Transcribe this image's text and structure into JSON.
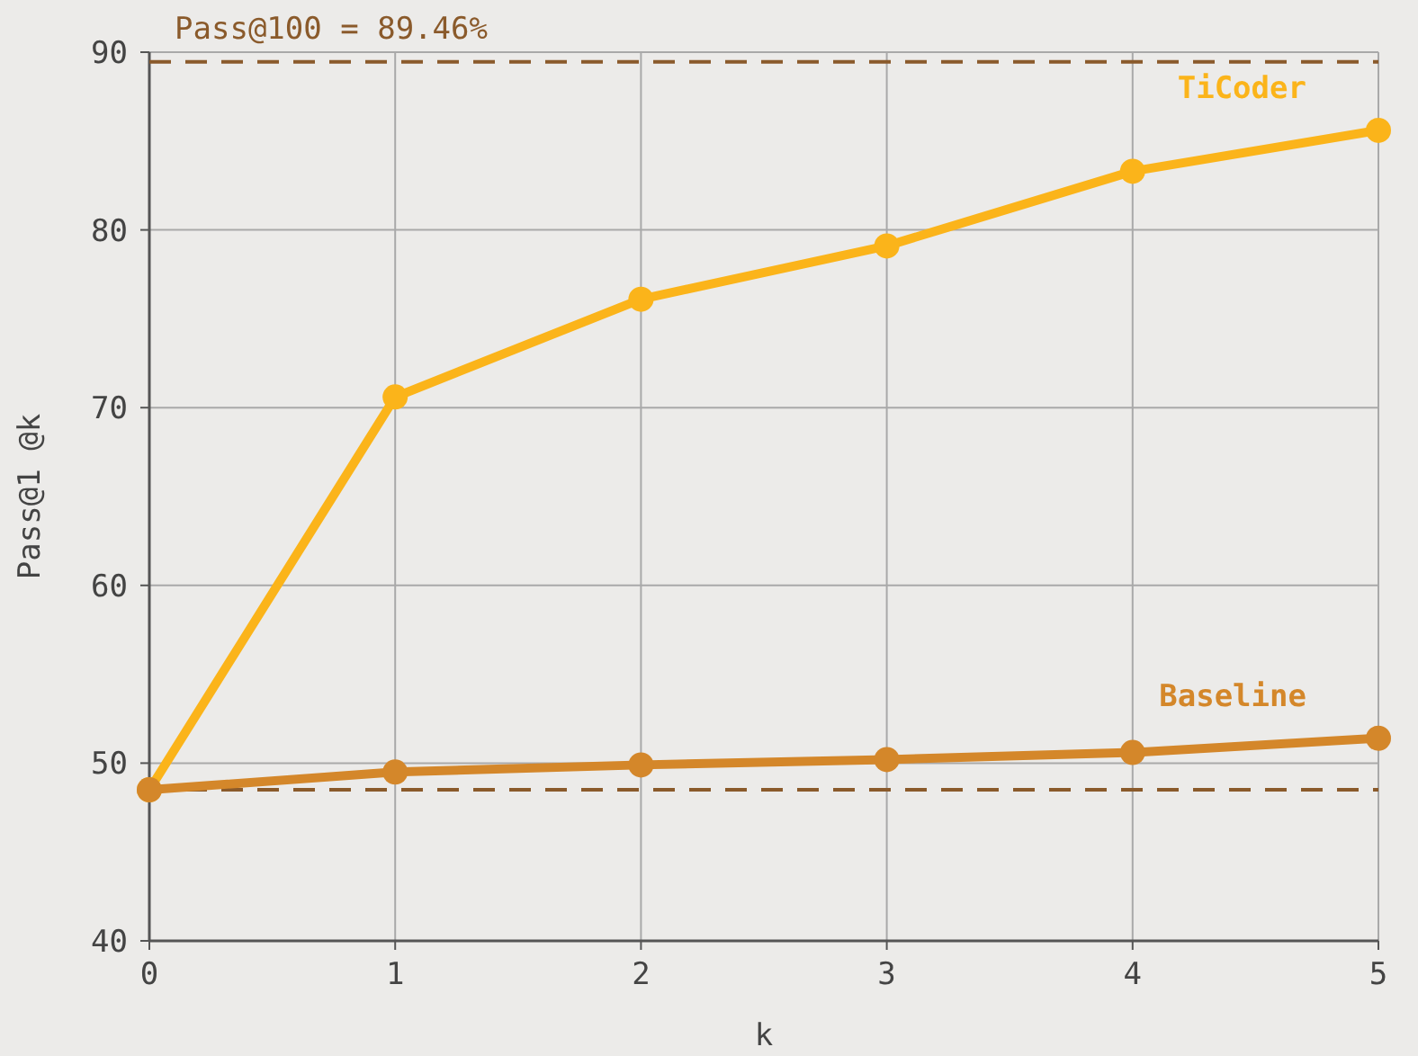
{
  "chart_data": {
    "type": "line",
    "xlabel": "k",
    "ylabel": "Pass@1 @k",
    "x": [
      0,
      1,
      2,
      3,
      4,
      5
    ],
    "series": [
      {
        "name": "TiCoder",
        "color": "#fbb41a",
        "values": [
          48.5,
          70.6,
          76.1,
          79.1,
          83.3,
          85.6
        ]
      },
      {
        "name": "Baseline",
        "color": "#d4872a",
        "values": [
          48.5,
          49.5,
          49.9,
          50.2,
          50.6,
          51.4
        ]
      }
    ],
    "xlim": [
      0,
      5
    ],
    "ylim": [
      40,
      90
    ],
    "xticks": [
      0,
      1,
      2,
      3,
      4,
      5
    ],
    "yticks": [
      40,
      50,
      60,
      70,
      80,
      90
    ],
    "ref_lines": [
      {
        "axis": "y",
        "value": 89.46,
        "label": "Pass@100 = 89.46%",
        "color": "#8a5a2b",
        "line_style": "dashed"
      },
      {
        "axis": "y",
        "value": 48.5,
        "label": null,
        "color": "#8a5a2b",
        "line_style": "dashed"
      }
    ],
    "grid": true,
    "marker": "circle",
    "line_style": "solid"
  }
}
